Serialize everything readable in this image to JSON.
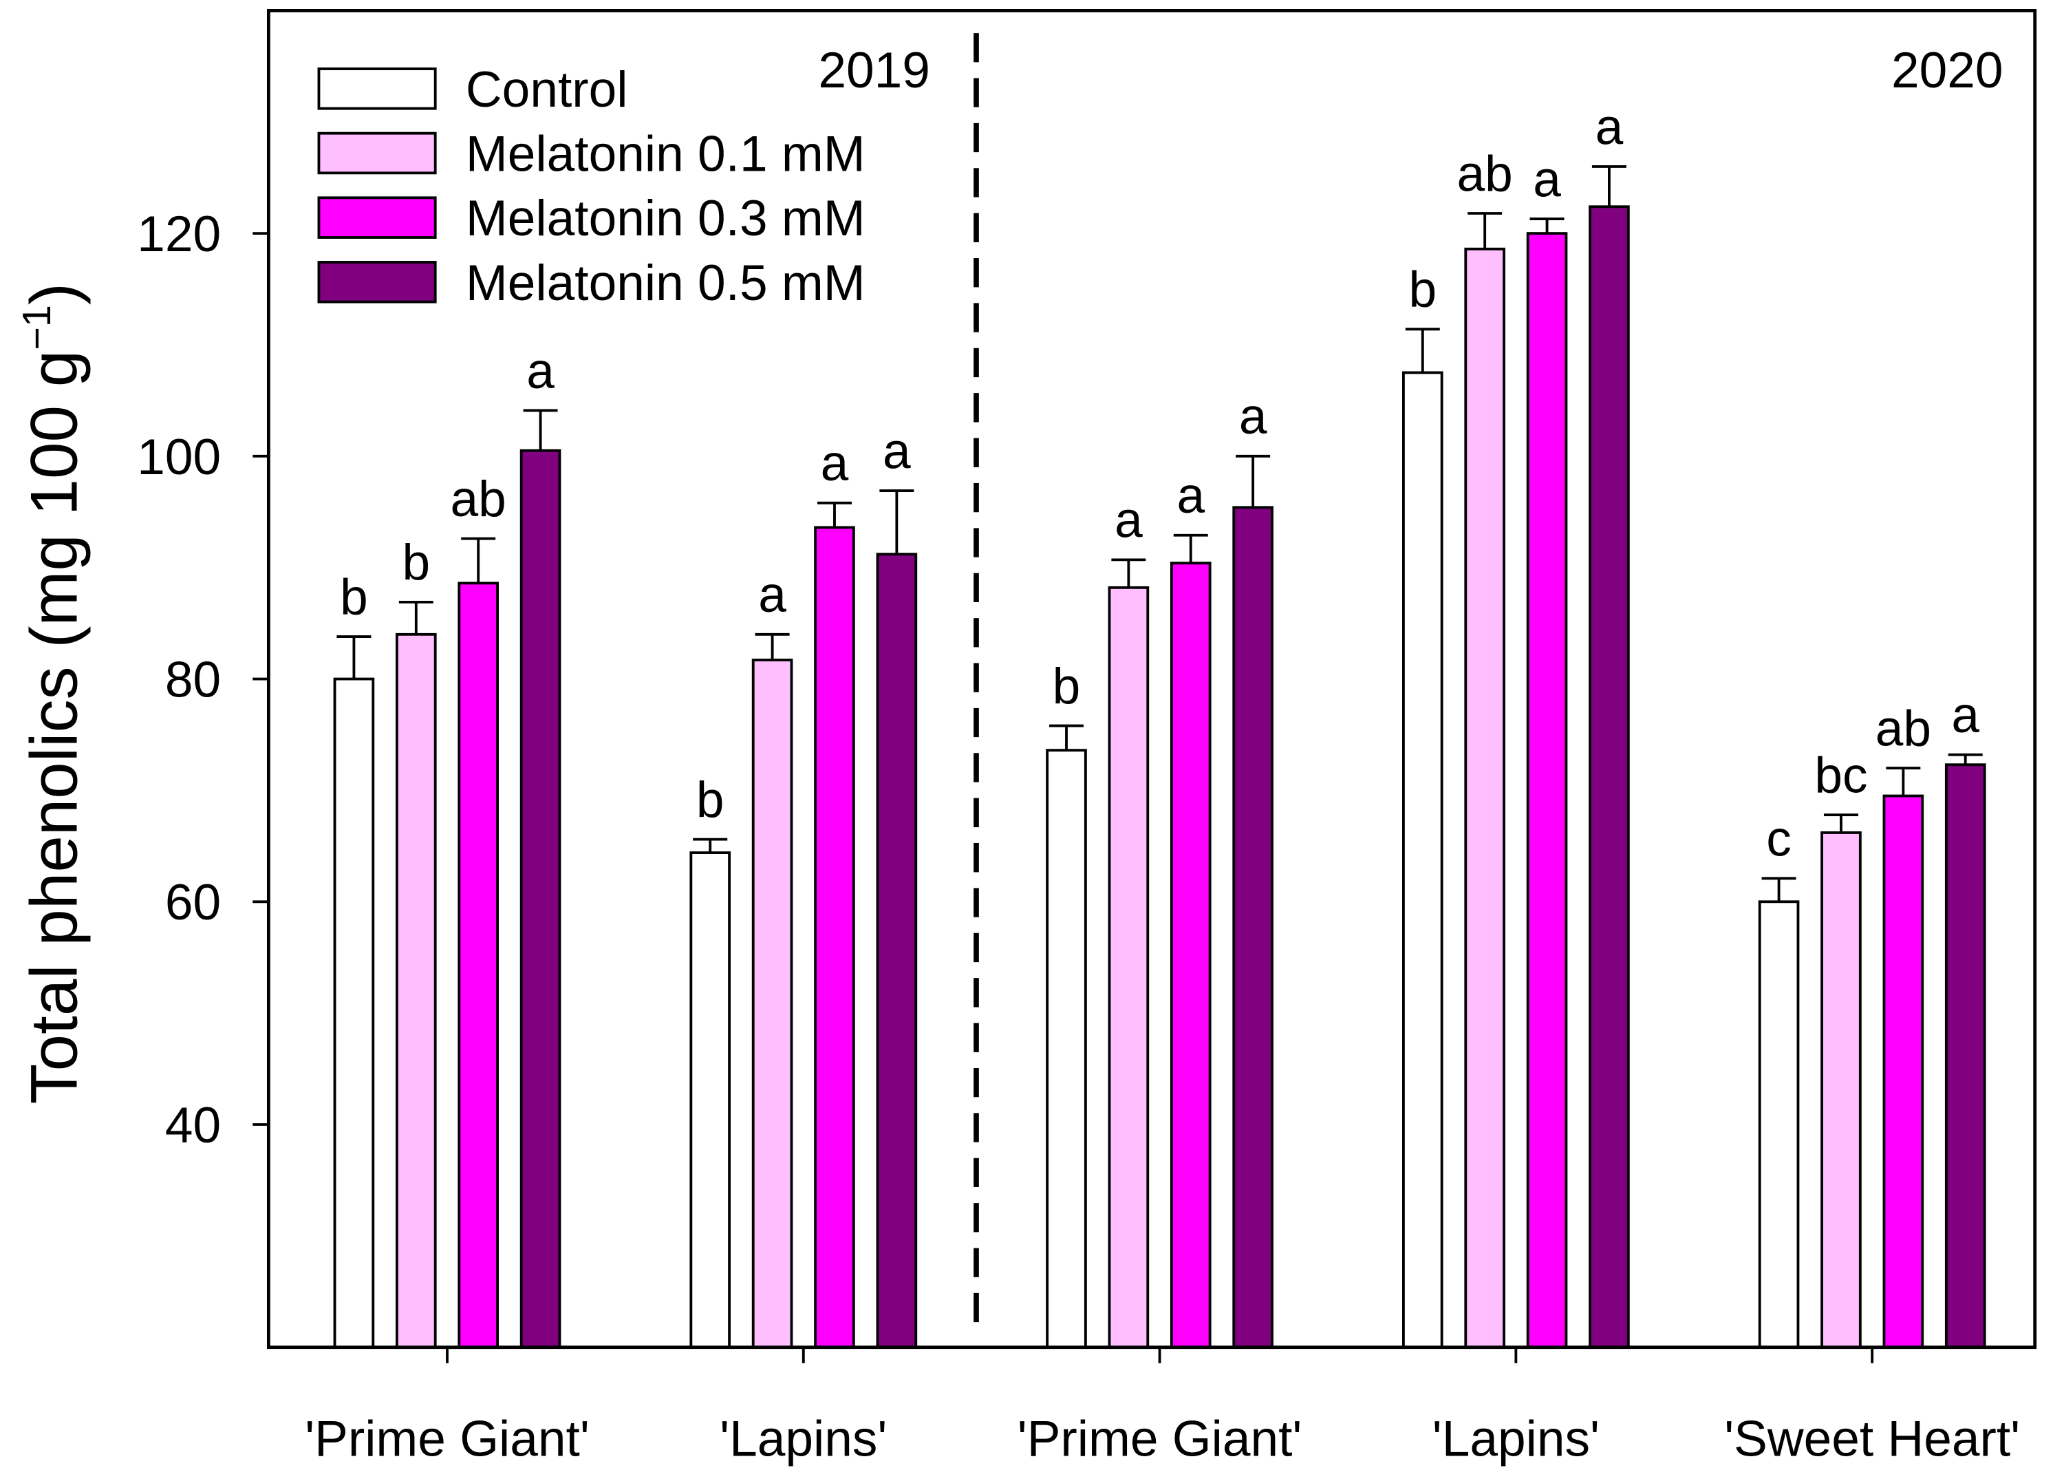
{
  "chart_data": {
    "type": "bar",
    "title": "",
    "xlabel": "",
    "ylabel": {
      "main": "Total phenolics (mg 100 g",
      "superscript": "−1",
      "close": ")"
    },
    "ylim": [
      20,
      140
    ],
    "yticks": [
      40,
      60,
      80,
      100,
      120
    ],
    "grid": false,
    "legend_position": "top-left",
    "year_groups": [
      {
        "label": "2019",
        "count": 2
      },
      {
        "label": "2020",
        "count": 3
      }
    ],
    "categories": [
      "'Prime Giant'",
      "'Lapins'",
      "'Prime Giant'",
      "'Lapins'",
      "'Sweet Heart'"
    ],
    "series": [
      {
        "name": "Control",
        "color": "#ffffff",
        "values": [
          80.0,
          64.4,
          73.6,
          107.5,
          60.0
        ],
        "errors": [
          3.8,
          1.2,
          2.2,
          3.9,
          2.1
        ],
        "letters": [
          "b",
          "b",
          "b",
          "b",
          "c"
        ]
      },
      {
        "name": "Melatonin 0.1 mM",
        "color": "#ffbfff",
        "values": [
          84.0,
          81.7,
          88.2,
          118.6,
          66.2
        ],
        "errors": [
          2.9,
          2.3,
          2.5,
          3.2,
          1.6
        ],
        "letters": [
          "b",
          "a",
          "a",
          "ab",
          "bc"
        ]
      },
      {
        "name": "Melatonin 0.3 mM",
        "color": "#ff00ff",
        "values": [
          88.6,
          93.6,
          90.4,
          120.0,
          69.5
        ],
        "errors": [
          4.0,
          2.2,
          2.5,
          1.3,
          2.5
        ],
        "letters": [
          "ab",
          "a",
          "a",
          "a",
          "ab"
        ]
      },
      {
        "name": "Melatonin 0.5 mM",
        "color": "#800080",
        "values": [
          100.5,
          91.2,
          95.4,
          122.4,
          72.3
        ],
        "errors": [
          3.6,
          5.7,
          4.6,
          3.6,
          0.9
        ],
        "letters": [
          "a",
          "a",
          "a",
          "a",
          "a"
        ]
      }
    ]
  }
}
